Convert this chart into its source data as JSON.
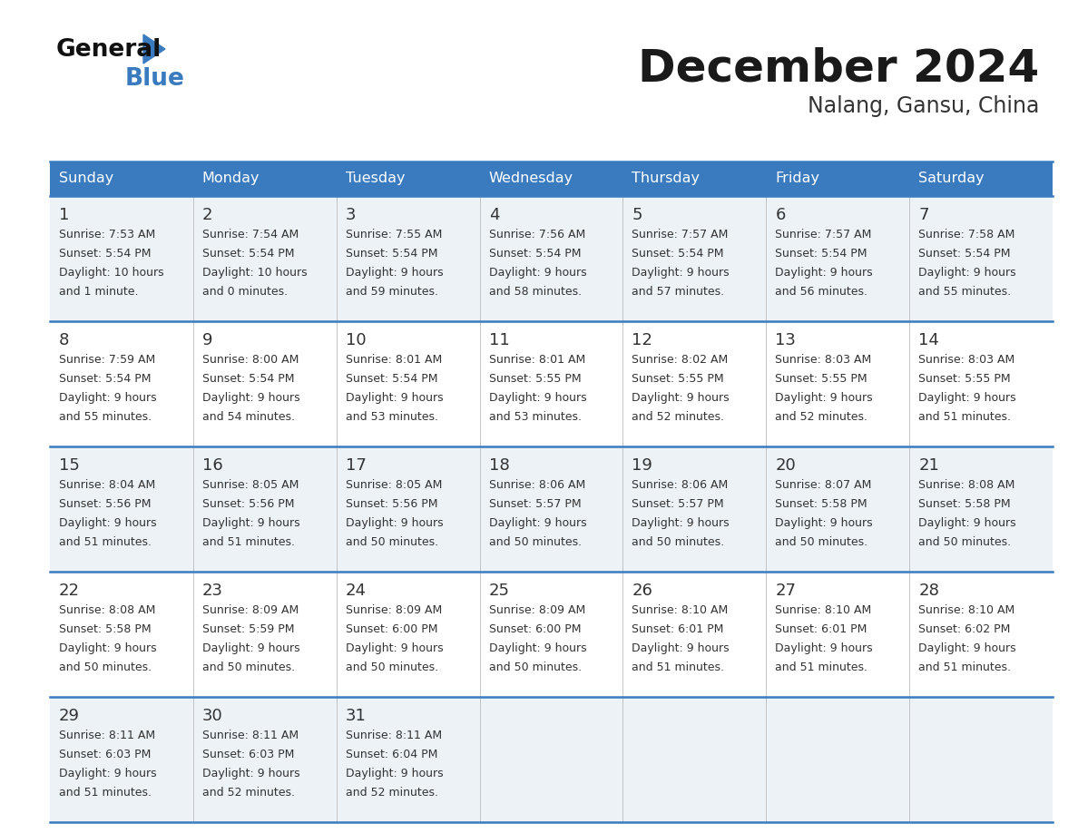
{
  "title": "December 2024",
  "subtitle": "Nalang, Gansu, China",
  "header_color": "#3a7bbf",
  "header_text_color": "#ffffff",
  "day_names": [
    "Sunday",
    "Monday",
    "Tuesday",
    "Wednesday",
    "Thursday",
    "Friday",
    "Saturday"
  ],
  "bg_color_odd": "#edf2f7",
  "bg_color_even": "#ffffff",
  "text_color": "#333333",
  "line_color": "#3a7bbf",
  "calendar": [
    [
      {
        "day": "1",
        "sunrise": "7:53 AM",
        "sunset": "5:54 PM",
        "daylight_line1": "Daylight: 10 hours",
        "daylight_line2": "and 1 minute."
      },
      {
        "day": "2",
        "sunrise": "7:54 AM",
        "sunset": "5:54 PM",
        "daylight_line1": "Daylight: 10 hours",
        "daylight_line2": "and 0 minutes."
      },
      {
        "day": "3",
        "sunrise": "7:55 AM",
        "sunset": "5:54 PM",
        "daylight_line1": "Daylight: 9 hours",
        "daylight_line2": "and 59 minutes."
      },
      {
        "day": "4",
        "sunrise": "7:56 AM",
        "sunset": "5:54 PM",
        "daylight_line1": "Daylight: 9 hours",
        "daylight_line2": "and 58 minutes."
      },
      {
        "day": "5",
        "sunrise": "7:57 AM",
        "sunset": "5:54 PM",
        "daylight_line1": "Daylight: 9 hours",
        "daylight_line2": "and 57 minutes."
      },
      {
        "day": "6",
        "sunrise": "7:57 AM",
        "sunset": "5:54 PM",
        "daylight_line1": "Daylight: 9 hours",
        "daylight_line2": "and 56 minutes."
      },
      {
        "day": "7",
        "sunrise": "7:58 AM",
        "sunset": "5:54 PM",
        "daylight_line1": "Daylight: 9 hours",
        "daylight_line2": "and 55 minutes."
      }
    ],
    [
      {
        "day": "8",
        "sunrise": "7:59 AM",
        "sunset": "5:54 PM",
        "daylight_line1": "Daylight: 9 hours",
        "daylight_line2": "and 55 minutes."
      },
      {
        "day": "9",
        "sunrise": "8:00 AM",
        "sunset": "5:54 PM",
        "daylight_line1": "Daylight: 9 hours",
        "daylight_line2": "and 54 minutes."
      },
      {
        "day": "10",
        "sunrise": "8:01 AM",
        "sunset": "5:54 PM",
        "daylight_line1": "Daylight: 9 hours",
        "daylight_line2": "and 53 minutes."
      },
      {
        "day": "11",
        "sunrise": "8:01 AM",
        "sunset": "5:55 PM",
        "daylight_line1": "Daylight: 9 hours",
        "daylight_line2": "and 53 minutes."
      },
      {
        "day": "12",
        "sunrise": "8:02 AM",
        "sunset": "5:55 PM",
        "daylight_line1": "Daylight: 9 hours",
        "daylight_line2": "and 52 minutes."
      },
      {
        "day": "13",
        "sunrise": "8:03 AM",
        "sunset": "5:55 PM",
        "daylight_line1": "Daylight: 9 hours",
        "daylight_line2": "and 52 minutes."
      },
      {
        "day": "14",
        "sunrise": "8:03 AM",
        "sunset": "5:55 PM",
        "daylight_line1": "Daylight: 9 hours",
        "daylight_line2": "and 51 minutes."
      }
    ],
    [
      {
        "day": "15",
        "sunrise": "8:04 AM",
        "sunset": "5:56 PM",
        "daylight_line1": "Daylight: 9 hours",
        "daylight_line2": "and 51 minutes."
      },
      {
        "day": "16",
        "sunrise": "8:05 AM",
        "sunset": "5:56 PM",
        "daylight_line1": "Daylight: 9 hours",
        "daylight_line2": "and 51 minutes."
      },
      {
        "day": "17",
        "sunrise": "8:05 AM",
        "sunset": "5:56 PM",
        "daylight_line1": "Daylight: 9 hours",
        "daylight_line2": "and 50 minutes."
      },
      {
        "day": "18",
        "sunrise": "8:06 AM",
        "sunset": "5:57 PM",
        "daylight_line1": "Daylight: 9 hours",
        "daylight_line2": "and 50 minutes."
      },
      {
        "day": "19",
        "sunrise": "8:06 AM",
        "sunset": "5:57 PM",
        "daylight_line1": "Daylight: 9 hours",
        "daylight_line2": "and 50 minutes."
      },
      {
        "day": "20",
        "sunrise": "8:07 AM",
        "sunset": "5:58 PM",
        "daylight_line1": "Daylight: 9 hours",
        "daylight_line2": "and 50 minutes."
      },
      {
        "day": "21",
        "sunrise": "8:08 AM",
        "sunset": "5:58 PM",
        "daylight_line1": "Daylight: 9 hours",
        "daylight_line2": "and 50 minutes."
      }
    ],
    [
      {
        "day": "22",
        "sunrise": "8:08 AM",
        "sunset": "5:58 PM",
        "daylight_line1": "Daylight: 9 hours",
        "daylight_line2": "and 50 minutes."
      },
      {
        "day": "23",
        "sunrise": "8:09 AM",
        "sunset": "5:59 PM",
        "daylight_line1": "Daylight: 9 hours",
        "daylight_line2": "and 50 minutes."
      },
      {
        "day": "24",
        "sunrise": "8:09 AM",
        "sunset": "6:00 PM",
        "daylight_line1": "Daylight: 9 hours",
        "daylight_line2": "and 50 minutes."
      },
      {
        "day": "25",
        "sunrise": "8:09 AM",
        "sunset": "6:00 PM",
        "daylight_line1": "Daylight: 9 hours",
        "daylight_line2": "and 50 minutes."
      },
      {
        "day": "26",
        "sunrise": "8:10 AM",
        "sunset": "6:01 PM",
        "daylight_line1": "Daylight: 9 hours",
        "daylight_line2": "and 51 minutes."
      },
      {
        "day": "27",
        "sunrise": "8:10 AM",
        "sunset": "6:01 PM",
        "daylight_line1": "Daylight: 9 hours",
        "daylight_line2": "and 51 minutes."
      },
      {
        "day": "28",
        "sunrise": "8:10 AM",
        "sunset": "6:02 PM",
        "daylight_line1": "Daylight: 9 hours",
        "daylight_line2": "and 51 minutes."
      }
    ],
    [
      {
        "day": "29",
        "sunrise": "8:11 AM",
        "sunset": "6:03 PM",
        "daylight_line1": "Daylight: 9 hours",
        "daylight_line2": "and 51 minutes."
      },
      {
        "day": "30",
        "sunrise": "8:11 AM",
        "sunset": "6:03 PM",
        "daylight_line1": "Daylight: 9 hours",
        "daylight_line2": "and 52 minutes."
      },
      {
        "day": "31",
        "sunrise": "8:11 AM",
        "sunset": "6:04 PM",
        "daylight_line1": "Daylight: 9 hours",
        "daylight_line2": "and 52 minutes."
      },
      null,
      null,
      null,
      null
    ]
  ]
}
